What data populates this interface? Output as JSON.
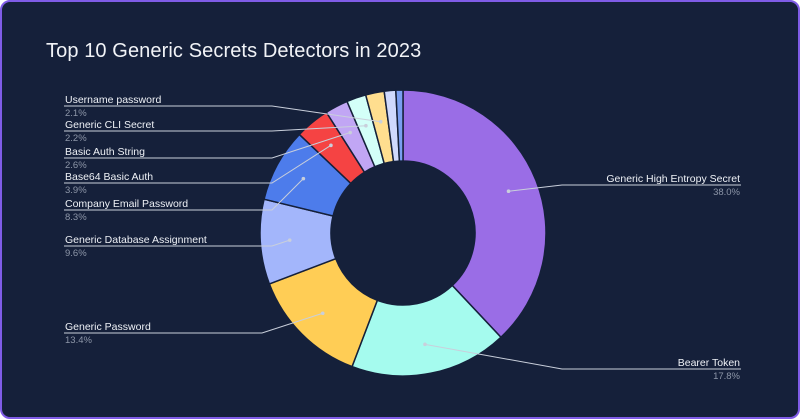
{
  "chart_data": {
    "type": "pie",
    "title": "Top 10 Generic Secrets Detectors in 2023",
    "slices": [
      {
        "label": "Generic High Entropy Secret",
        "value": 38.0,
        "value_label": "38.0%",
        "color": "#9a6de6"
      },
      {
        "label": "Bearer Token",
        "value": 17.8,
        "value_label": "17.8%",
        "color": "#a5fbee"
      },
      {
        "label": "Generic Password",
        "value": 13.4,
        "value_label": "13.4%",
        "color": "#ffcd55"
      },
      {
        "label": "Generic Database Assignment",
        "value": 9.6,
        "value_label": "9.6%",
        "color": "#a3b6fb"
      },
      {
        "label": "Company Email Password",
        "value": 8.3,
        "value_label": "8.3%",
        "color": "#4d7ceb"
      },
      {
        "label": "Base64 Basic Auth",
        "value": 3.9,
        "value_label": "3.9%",
        "color": "#f54343"
      },
      {
        "label": "Basic Auth String",
        "value": 2.6,
        "value_label": "2.6%",
        "color": "#c1a6f4"
      },
      {
        "label": "Generic CLI Secret",
        "value": 2.2,
        "value_label": "2.2%",
        "color": "#d3fff8"
      },
      {
        "label": "Username password",
        "value": 2.1,
        "value_label": "2.1%",
        "color": "#ffde8f"
      },
      {
        "label": "",
        "value": 1.3,
        "value_label": "",
        "color": "#cfd9fd"
      },
      {
        "label": "",
        "value": 0.8,
        "value_label": "",
        "color": "#7a9ef1"
      }
    ],
    "donut": true,
    "start": "top, clockwise",
    "legend": "none"
  }
}
